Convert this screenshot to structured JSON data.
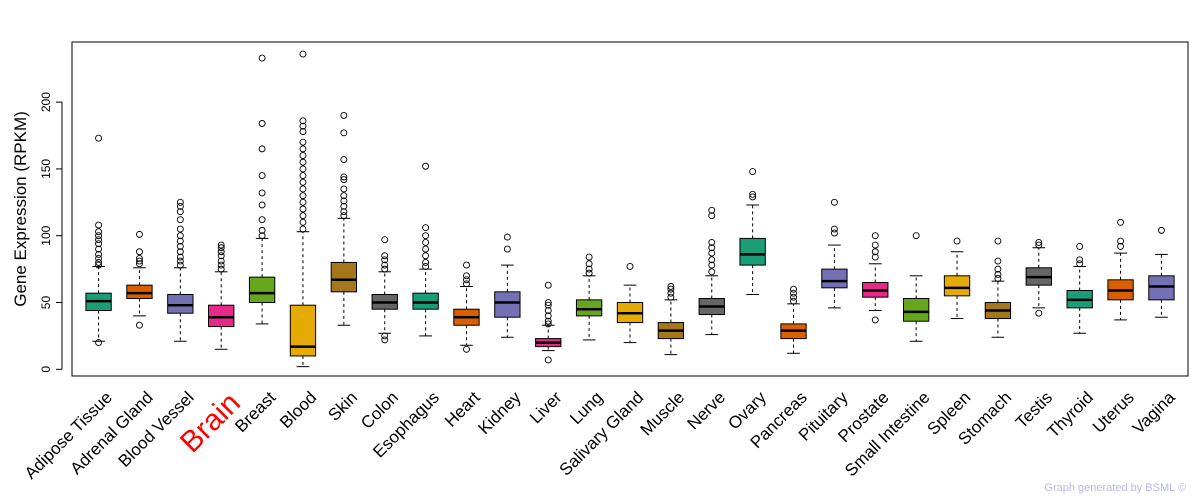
{
  "chart_data": {
    "type": "boxplot",
    "title": "",
    "xlabel": "",
    "ylabel": "Gene Expression (RPKM)",
    "ylim": [
      -5,
      245
    ],
    "yticks": [
      0,
      50,
      100,
      150,
      200
    ],
    "highlight": "Brain",
    "series": [
      {
        "name": "Adipose Tissue",
        "color": "#1b9e77",
        "min": 21,
        "q1": 44,
        "median": 51,
        "q3": 57,
        "max": 77,
        "outliers": [
          20,
          78,
          80,
          83,
          86,
          90,
          94,
          97,
          100,
          103,
          108,
          173
        ]
      },
      {
        "name": "Adrenal Gland",
        "color": "#d95f02",
        "min": 40,
        "q1": 53,
        "median": 57,
        "q3": 63,
        "max": 76,
        "outliers": [
          33,
          79,
          81,
          83,
          88,
          101
        ]
      },
      {
        "name": "Blood Vessel",
        "color": "#7570b3",
        "min": 21,
        "q1": 42,
        "median": 48,
        "q3": 56,
        "max": 76,
        "outliers": [
          78,
          81,
          84,
          88,
          92,
          96,
          100,
          105,
          112,
          118,
          122,
          125
        ]
      },
      {
        "name": "Brain",
        "color": "#e7298a",
        "min": 15,
        "q1": 32,
        "median": 39,
        "q3": 48,
        "max": 73,
        "outliers": [
          75,
          78,
          81,
          85,
          88,
          91,
          93
        ]
      },
      {
        "name": "Breast",
        "color": "#66a61e",
        "min": 34,
        "q1": 50,
        "median": 57,
        "q3": 69,
        "max": 98,
        "outliers": [
          100,
          104,
          112,
          123,
          132,
          145,
          165,
          184,
          233
        ]
      },
      {
        "name": "Blood",
        "color": "#e6ab02",
        "min": 2,
        "q1": 10,
        "median": 17,
        "q3": 48,
        "max": 103,
        "outliers": [
          105,
          110,
          115,
          120,
          125,
          130,
          135,
          140,
          145,
          150,
          155,
          160,
          165,
          170,
          178,
          182,
          186,
          236
        ]
      },
      {
        "name": "Skin",
        "color": "#a6761d",
        "min": 33,
        "q1": 58,
        "median": 67,
        "q3": 80,
        "max": 113,
        "outliers": [
          115,
          118,
          122,
          126,
          130,
          135,
          142,
          144,
          157,
          177,
          190
        ]
      },
      {
        "name": "Colon",
        "color": "#666666",
        "min": 27,
        "q1": 45,
        "median": 50,
        "q3": 56,
        "max": 73,
        "outliers": [
          22,
          25,
          75,
          78,
          82,
          85,
          97
        ]
      },
      {
        "name": "Esophagus",
        "color": "#1b9e77",
        "min": 25,
        "q1": 45,
        "median": 50,
        "q3": 57,
        "max": 75,
        "outliers": [
          77,
          80,
          85,
          90,
          95,
          100,
          106,
          152
        ]
      },
      {
        "name": "Heart",
        "color": "#d95f02",
        "min": 18,
        "q1": 33,
        "median": 39,
        "q3": 45,
        "max": 62,
        "outliers": [
          15,
          64,
          67,
          70,
          78
        ]
      },
      {
        "name": "Kidney",
        "color": "#7570b3",
        "min": 24,
        "q1": 39,
        "median": 50,
        "q3": 58,
        "max": 78,
        "outliers": [
          90,
          99
        ]
      },
      {
        "name": "Liver",
        "color": "#e7298a",
        "min": 14,
        "q1": 17,
        "median": 20,
        "q3": 23,
        "max": 33,
        "outliers": [
          7,
          34,
          36,
          40,
          44,
          48,
          50,
          63
        ]
      },
      {
        "name": "Lung",
        "color": "#66a61e",
        "min": 22,
        "q1": 40,
        "median": 45,
        "q3": 52,
        "max": 70,
        "outliers": [
          72,
          75,
          79,
          84
        ]
      },
      {
        "name": "Salivary Gland",
        "color": "#e6ab02",
        "min": 20,
        "q1": 35,
        "median": 42,
        "q3": 50,
        "max": 63,
        "outliers": [
          77
        ]
      },
      {
        "name": "Muscle",
        "color": "#a6761d",
        "min": 11,
        "q1": 23,
        "median": 29,
        "q3": 35,
        "max": 52,
        "outliers": [
          54,
          57,
          60,
          62
        ]
      },
      {
        "name": "Nerve",
        "color": "#666666",
        "min": 26,
        "q1": 41,
        "median": 47,
        "q3": 53,
        "max": 70,
        "outliers": [
          73,
          78,
          82,
          87,
          91,
          95,
          115,
          119
        ]
      },
      {
        "name": "Ovary",
        "color": "#1b9e77",
        "min": 56,
        "q1": 78,
        "median": 86,
        "q3": 98,
        "max": 123,
        "outliers": [
          129,
          131,
          148
        ]
      },
      {
        "name": "Pancreas",
        "color": "#d95f02",
        "min": 12,
        "q1": 23,
        "median": 29,
        "q3": 34,
        "max": 49,
        "outliers": [
          51,
          54,
          57,
          60
        ]
      },
      {
        "name": "Pituitary",
        "color": "#7570b3",
        "min": 46,
        "q1": 61,
        "median": 66,
        "q3": 75,
        "max": 93,
        "outliers": [
          102,
          105,
          125
        ]
      },
      {
        "name": "Prostate",
        "color": "#e7298a",
        "min": 44,
        "q1": 54,
        "median": 59,
        "q3": 65,
        "max": 79,
        "outliers": [
          37,
          84,
          88,
          93,
          100
        ]
      },
      {
        "name": "Small Intestine",
        "color": "#66a61e",
        "min": 21,
        "q1": 36,
        "median": 43,
        "q3": 53,
        "max": 70,
        "outliers": [
          100
        ]
      },
      {
        "name": "Spleen",
        "color": "#e6ab02",
        "min": 38,
        "q1": 55,
        "median": 61,
        "q3": 70,
        "max": 88,
        "outliers": [
          96
        ]
      },
      {
        "name": "Stomach",
        "color": "#a6761d",
        "min": 24,
        "q1": 38,
        "median": 44,
        "q3": 50,
        "max": 66,
        "outliers": [
          68,
          71,
          75,
          81,
          96
        ]
      },
      {
        "name": "Testis",
        "color": "#666666",
        "min": 46,
        "q1": 63,
        "median": 69,
        "q3": 76,
        "max": 91,
        "outliers": [
          42,
          93,
          95
        ]
      },
      {
        "name": "Thyroid",
        "color": "#1b9e77",
        "min": 27,
        "q1": 46,
        "median": 52,
        "q3": 59,
        "max": 77,
        "outliers": [
          79,
          82,
          92
        ]
      },
      {
        "name": "Uterus",
        "color": "#d95f02",
        "min": 37,
        "q1": 52,
        "median": 59,
        "q3": 67,
        "max": 87,
        "outliers": [
          92,
          96,
          110
        ]
      },
      {
        "name": "Vagina",
        "color": "#7570b3",
        "min": 39,
        "q1": 52,
        "median": 62,
        "q3": 70,
        "max": 86,
        "outliers": [
          104
        ]
      }
    ],
    "highlight_color": "#ff0000"
  },
  "credit": "Graph generated by BSML ©"
}
